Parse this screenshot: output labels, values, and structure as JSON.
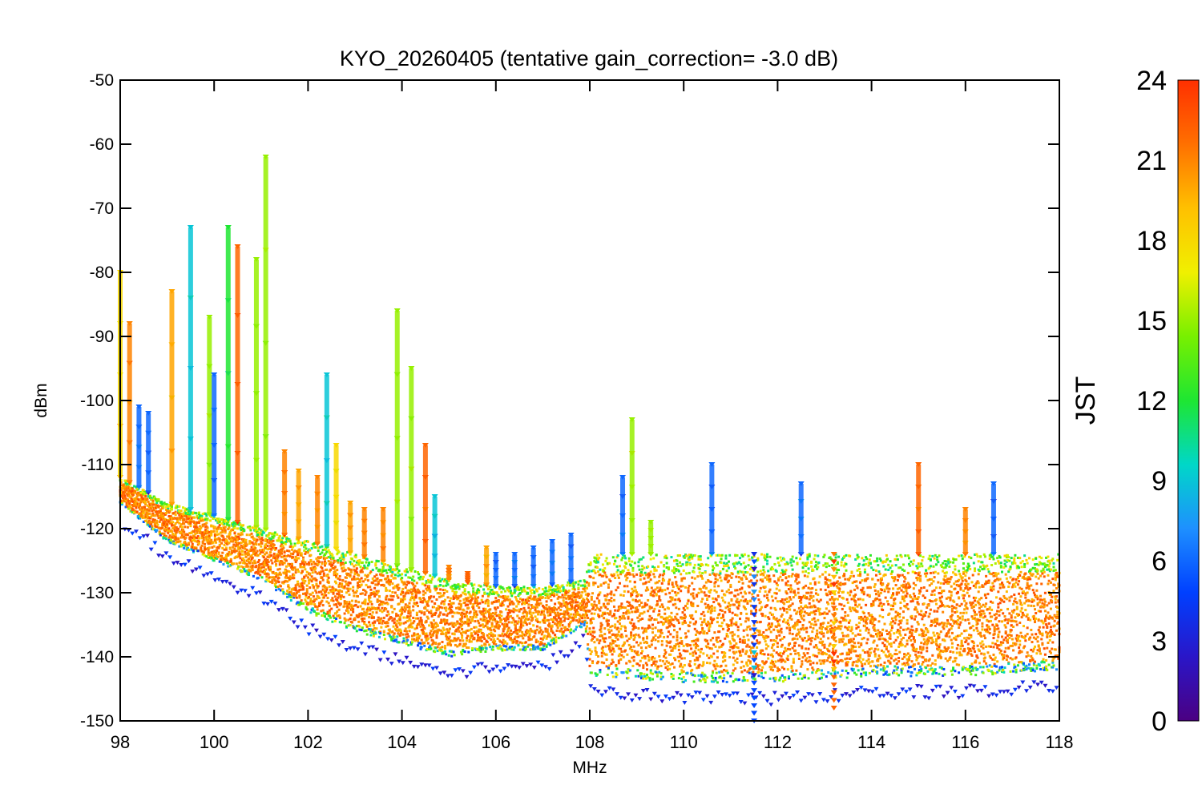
{
  "chart_data": {
    "type": "scatter",
    "title": "KYO_20260405 (tentative gain_correction= -3.0 dB)",
    "xlabel": "MHz",
    "ylabel": "dBm",
    "xlim": [
      98,
      118
    ],
    "ylim": [
      -150,
      -50
    ],
    "xticks": [
      "98",
      "100",
      "102",
      "104",
      "106",
      "108",
      "110",
      "112",
      "114",
      "116",
      "118"
    ],
    "yticks": [
      "-50",
      "-60",
      "-70",
      "-80",
      "-90",
      "-100",
      "-110",
      "-120",
      "-130",
      "-140",
      "-150"
    ],
    "colorbar": {
      "label": "JST",
      "range": [
        0,
        24
      ],
      "ticks": [
        "24",
        "21",
        "18",
        "15",
        "12",
        "9",
        "6",
        "3",
        "0"
      ],
      "colormap": "rainbow",
      "colors": [
        "#4b0082",
        "#2a16c8",
        "#0040ff",
        "#1e90ff",
        "#00d7c8",
        "#1ee632",
        "#78f000",
        "#f0f000",
        "#ffc000",
        "#ff7000",
        "#ff3000"
      ]
    },
    "noise_floor": [
      {
        "x": 98.0,
        "y": -116
      },
      {
        "x": 99.0,
        "y": -122
      },
      {
        "x": 100.0,
        "y": -125
      },
      {
        "x": 101.0,
        "y": -128
      },
      {
        "x": 102.0,
        "y": -133
      },
      {
        "x": 103.0,
        "y": -136
      },
      {
        "x": 104.0,
        "y": -138
      },
      {
        "x": 105.0,
        "y": -140
      },
      {
        "x": 106.0,
        "y": -139
      },
      {
        "x": 107.0,
        "y": -139
      },
      {
        "x": 107.9,
        "y": -135
      },
      {
        "x": 108.0,
        "y": -143
      },
      {
        "x": 110.0,
        "y": -144
      },
      {
        "x": 112.0,
        "y": -144
      },
      {
        "x": 114.0,
        "y": -143
      },
      {
        "x": 116.0,
        "y": -143
      },
      {
        "x": 118.0,
        "y": -142
      }
    ],
    "upper_envelope": [
      {
        "x": 98.0,
        "y": -112
      },
      {
        "x": 99.0,
        "y": -116
      },
      {
        "x": 100.0,
        "y": -118
      },
      {
        "x": 101.0,
        "y": -120
      },
      {
        "x": 102.0,
        "y": -122
      },
      {
        "x": 103.0,
        "y": -124
      },
      {
        "x": 104.0,
        "y": -126
      },
      {
        "x": 105.0,
        "y": -128
      },
      {
        "x": 106.0,
        "y": -129
      },
      {
        "x": 107.0,
        "y": -129
      },
      {
        "x": 107.9,
        "y": -128
      },
      {
        "x": 108.0,
        "y": -124
      },
      {
        "x": 110.0,
        "y": -124
      },
      {
        "x": 112.0,
        "y": -124
      },
      {
        "x": 114.0,
        "y": -124
      },
      {
        "x": 116.0,
        "y": -124
      },
      {
        "x": 118.0,
        "y": -124
      }
    ],
    "peaks": [
      {
        "x": 98.0,
        "y": -80,
        "jst": 18
      },
      {
        "x": 98.2,
        "y": -88,
        "jst": 21
      },
      {
        "x": 98.4,
        "y": -101,
        "jst": 6
      },
      {
        "x": 98.6,
        "y": -102,
        "jst": 6
      },
      {
        "x": 99.1,
        "y": -83,
        "jst": 20
      },
      {
        "x": 99.5,
        "y": -73,
        "jst": 9
      },
      {
        "x": 99.9,
        "y": -87,
        "jst": 15
      },
      {
        "x": 100.0,
        "y": -96,
        "jst": 6
      },
      {
        "x": 100.3,
        "y": -73,
        "jst": 12
      },
      {
        "x": 100.5,
        "y": -76,
        "jst": 22
      },
      {
        "x": 100.9,
        "y": -78,
        "jst": 15
      },
      {
        "x": 101.1,
        "y": -62,
        "jst": 15
      },
      {
        "x": 101.5,
        "y": -108,
        "jst": 21
      },
      {
        "x": 101.8,
        "y": -111,
        "jst": 20
      },
      {
        "x": 102.2,
        "y": -112,
        "jst": 21
      },
      {
        "x": 102.4,
        "y": -96,
        "jst": 9
      },
      {
        "x": 102.6,
        "y": -107,
        "jst": 18
      },
      {
        "x": 102.9,
        "y": -116,
        "jst": 20
      },
      {
        "x": 103.2,
        "y": -117,
        "jst": 21
      },
      {
        "x": 103.6,
        "y": -117,
        "jst": 21
      },
      {
        "x": 103.9,
        "y": -86,
        "jst": 15
      },
      {
        "x": 104.2,
        "y": -95,
        "jst": 15
      },
      {
        "x": 104.5,
        "y": -107,
        "jst": 22
      },
      {
        "x": 104.7,
        "y": -115,
        "jst": 9
      },
      {
        "x": 105.0,
        "y": -126,
        "jst": 21
      },
      {
        "x": 105.4,
        "y": -127,
        "jst": 22
      },
      {
        "x": 105.8,
        "y": -123,
        "jst": 20
      },
      {
        "x": 106.0,
        "y": -124,
        "jst": 6
      },
      {
        "x": 106.4,
        "y": -124,
        "jst": 6
      },
      {
        "x": 106.8,
        "y": -123,
        "jst": 6
      },
      {
        "x": 107.2,
        "y": -122,
        "jst": 6
      },
      {
        "x": 107.6,
        "y": -121,
        "jst": 6
      },
      {
        "x": 108.7,
        "y": -112,
        "jst": 6
      },
      {
        "x": 108.9,
        "y": -103,
        "jst": 15
      },
      {
        "x": 109.3,
        "y": -119,
        "jst": 15
      },
      {
        "x": 110.6,
        "y": -110,
        "jst": 6
      },
      {
        "x": 112.5,
        "y": -113,
        "jst": 6
      },
      {
        "x": 115.0,
        "y": -110,
        "jst": 22
      },
      {
        "x": 116.0,
        "y": -117,
        "jst": 21
      },
      {
        "x": 116.6,
        "y": -113,
        "jst": 6
      },
      {
        "x": 113.2,
        "y": -148,
        "jst": 22
      },
      {
        "x": 111.5,
        "y": -150,
        "jst": 5
      }
    ]
  }
}
